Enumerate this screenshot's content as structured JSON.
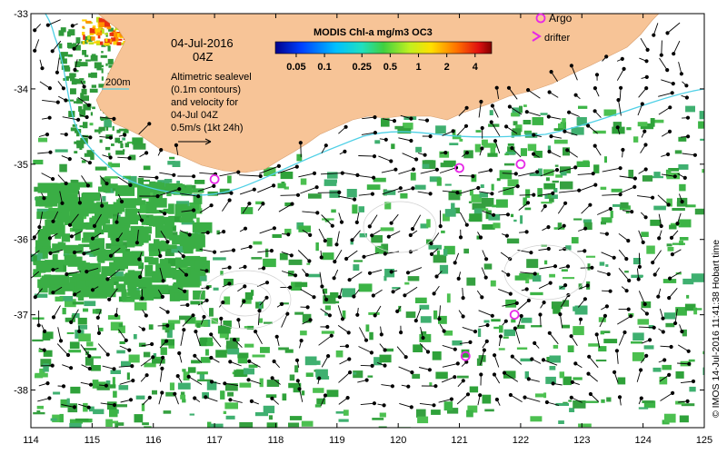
{
  "map": {
    "date_line1": "04-Jul-2016",
    "date_line2": "04Z",
    "contour_label": "200m",
    "annotation_lines": [
      "Altimetric sealevel",
      "(0.1m contours)",
      "and velocity for",
      "04-Jul 04Z",
      "0.5m/s (1kt 24h)"
    ],
    "colorbar_title": "MODIS Chl-a mg/m3 OC3",
    "colorbar_ticks": [
      "0.05",
      "0.1",
      "0.25",
      "0.5",
      "1",
      "2",
      "4"
    ],
    "legend": {
      "argo": "Argo",
      "drifter": "drifter"
    },
    "credit": "© IMOS 14-Jul-2016 11:41:38 Hobart time",
    "x_ticks": [
      "114",
      "115",
      "116",
      "117",
      "118",
      "119",
      "120",
      "121",
      "122",
      "123",
      "124",
      "125"
    ],
    "y_ticks": [
      "-33",
      "-34",
      "-35",
      "-36",
      "-37",
      "-38"
    ],
    "lon_range": [
      114,
      125
    ],
    "lat_range": [
      -38.5,
      -33
    ],
    "colors": {
      "land": "#f7c497",
      "ocean": "#ffffff",
      "chl_patch": "#3cb446",
      "chl_dense": "#2fa23a",
      "contour": "#4fd0e6",
      "argo": "#e629e6",
      "arrow": "#000000"
    },
    "argo_floats": [
      {
        "lon": 117.0,
        "lat": -35.2
      },
      {
        "lon": 121.0,
        "lat": -35.05
      },
      {
        "lon": 122.0,
        "lat": -35.0
      },
      {
        "lon": 121.9,
        "lat": -37.0
      },
      {
        "lon": 121.1,
        "lat": -37.55
      }
    ]
  }
}
